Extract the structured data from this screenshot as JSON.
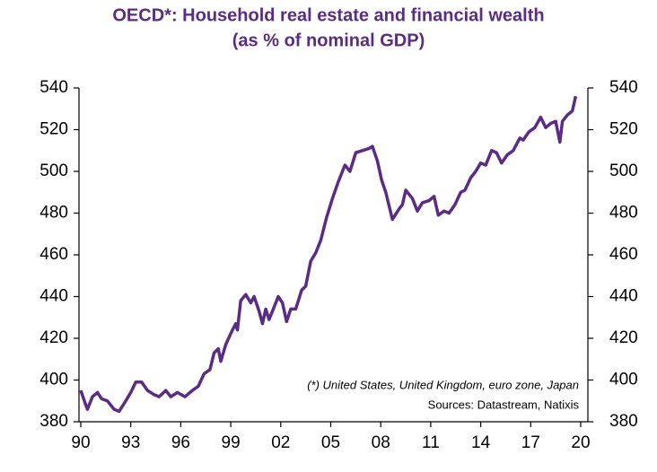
{
  "chart_data": {
    "type": "line",
    "title": "OECD*:  Household real estate and financial wealth",
    "subtitle": "(as % of nominal GDP)",
    "annotations": [
      "(*) United States, United Kingdom, euro zone, Japan",
      "Sources:  Datastream,  Natixis"
    ],
    "x": [
      1990.0,
      1990.3,
      1990.4,
      1990.7,
      1991.0,
      1991.25,
      1991.6,
      1992.0,
      1992.3,
      1992.7,
      1993.0,
      1993.3,
      1993.65,
      1994.0,
      1994.4,
      1994.7,
      1995.1,
      1995.4,
      1995.8,
      1996.25,
      1996.7,
      1997.05,
      1997.4,
      1997.75,
      1998.0,
      1998.25,
      1998.4,
      1998.7,
      1999.1,
      1999.3,
      1999.4,
      1999.6,
      1999.9,
      2000.2,
      2000.4,
      2000.7,
      2000.9,
      2001.1,
      2001.3,
      2001.6,
      2001.85,
      2002.1,
      2002.35,
      2002.6,
      2002.9,
      2003.25,
      2003.5,
      2003.8,
      2004.1,
      2004.4,
      2004.75,
      2005.1,
      2005.45,
      2005.85,
      2006.15,
      2006.5,
      2006.9,
      2007.3,
      2007.5,
      2007.8,
      2008.05,
      2008.3,
      2008.7,
      2009.1,
      2009.3,
      2009.5,
      2009.7,
      2009.9,
      2010.2,
      2010.5,
      2010.9,
      2011.2,
      2011.45,
      2011.8,
      2012.1,
      2012.45,
      2012.8,
      2013.05,
      2013.4,
      2013.7,
      2014.0,
      2014.3,
      2014.65,
      2014.95,
      2015.25,
      2015.6,
      2015.95,
      2016.35,
      2016.55,
      2016.9,
      2017.25,
      2017.6,
      2017.9,
      2018.2,
      2018.5,
      2018.75,
      2018.9,
      2019.2,
      2019.5,
      2019.7
    ],
    "series": [
      {
        "color": "#5b2c83",
        "values": [
          395,
          388,
          386,
          392,
          394,
          391,
          390,
          386,
          385,
          390,
          394,
          399,
          399,
          395,
          393,
          392,
          395,
          392,
          394,
          392,
          395,
          397,
          403,
          405,
          413,
          415,
          409,
          417,
          424,
          427,
          424,
          438,
          441,
          437,
          440,
          433,
          427,
          434,
          429,
          435,
          440,
          437,
          428,
          434,
          434,
          443,
          445,
          457,
          461,
          467,
          478,
          487,
          495,
          503,
          500,
          509,
          510,
          511,
          512,
          505,
          496,
          490,
          477,
          482,
          484,
          491,
          489,
          487,
          481,
          485,
          486,
          488,
          479,
          481,
          480,
          484,
          490,
          491,
          497,
          500,
          504,
          503,
          510,
          509,
          504,
          508,
          510,
          516,
          515,
          519,
          521,
          526,
          521,
          523,
          524,
          514,
          524,
          527,
          529,
          536
        ]
      }
    ],
    "xlim": [
      1990,
      2020
    ],
    "xticks": [
      {
        "value": 1990,
        "label": "90"
      },
      {
        "value": 1993,
        "label": "93"
      },
      {
        "value": 1996,
        "label": "96"
      },
      {
        "value": 1999,
        "label": "99"
      },
      {
        "value": 2002,
        "label": "02"
      },
      {
        "value": 2005,
        "label": "05"
      },
      {
        "value": 2008,
        "label": "08"
      },
      {
        "value": 2011,
        "label": "11"
      },
      {
        "value": 2014,
        "label": "14"
      },
      {
        "value": 2017,
        "label": "17"
      },
      {
        "value": 2020,
        "label": "20"
      }
    ],
    "ylim": [
      380,
      540
    ],
    "yticks": [
      380,
      400,
      420,
      440,
      460,
      480,
      500,
      520,
      540
    ],
    "y2lim": [
      380,
      540
    ],
    "y2ticks": [
      380,
      400,
      420,
      440,
      460,
      480,
      500,
      520,
      540
    ]
  }
}
